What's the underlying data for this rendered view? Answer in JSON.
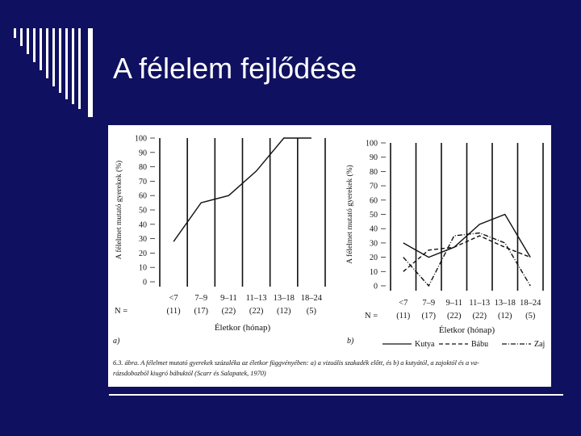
{
  "slide": {
    "title": "A félelem fejlődése",
    "background_color": "#101060",
    "decoration": "striped-bars"
  },
  "figure": {
    "ylabel": "A félelmet mutató gyerekek (%)",
    "xlabel": "Életkor (hónap)",
    "n_label": "N =",
    "caption_line1": "6.3. ábra. A félelmet mutató gyerekek százaléka az életkor függvényében: a) a vizuális szakadék előtt, és b) a kutyától, a zajoktól és a va-",
    "caption_line2": "rázsdobozból kiugró bábuktól (Scarr és Salapatek, 1970)",
    "panel_a_label": "a)",
    "panel_b_label": "b)"
  },
  "chart_data": [
    {
      "type": "line",
      "panel": "a)",
      "ylabel": "A félelmet mutató gyerekek (%)",
      "xlabel": "Életkor (hónap)",
      "categories": [
        "<7",
        "7–9",
        "9–11",
        "11–13",
        "13–18",
        "18–24"
      ],
      "n_values": [
        "(11)",
        "(17)",
        "(22)",
        "(22)",
        "(12)",
        "(5)"
      ],
      "y_ticks": [
        "0",
        "10",
        "20",
        "30",
        "40",
        "50",
        "60",
        "70",
        "80",
        "90",
        "100"
      ],
      "ylim": [
        0,
        100
      ],
      "series": [
        {
          "values": [
            28,
            55,
            60,
            77,
            100,
            100
          ],
          "style": "solid"
        }
      ]
    },
    {
      "type": "line",
      "panel": "b)",
      "ylabel": "A félelmet mutató gyerekek (%)",
      "xlabel": "Életkor (hónap)",
      "categories": [
        "<7",
        "7–9",
        "9–11",
        "11–13",
        "13–18",
        "18–24"
      ],
      "n_values": [
        "(11)",
        "(17)",
        "(22)",
        "(22)",
        "(12)",
        "(5)"
      ],
      "y_ticks": [
        "0",
        "10",
        "20",
        "30",
        "40",
        "50",
        "60",
        "70",
        "80",
        "90",
        "100"
      ],
      "ylim": [
        0,
        100
      ],
      "legend_position": "bottom",
      "series": [
        {
          "name": "Kutya",
          "style": "solid",
          "values": [
            30,
            20,
            27,
            43,
            50,
            20
          ]
        },
        {
          "name": "Bábu",
          "style": "dashed",
          "values": [
            10,
            25,
            27,
            35,
            27,
            20
          ]
        },
        {
          "name": "Zaj",
          "style": "dashdot",
          "values": [
            20,
            0,
            35,
            37,
            30,
            0
          ]
        }
      ]
    }
  ]
}
